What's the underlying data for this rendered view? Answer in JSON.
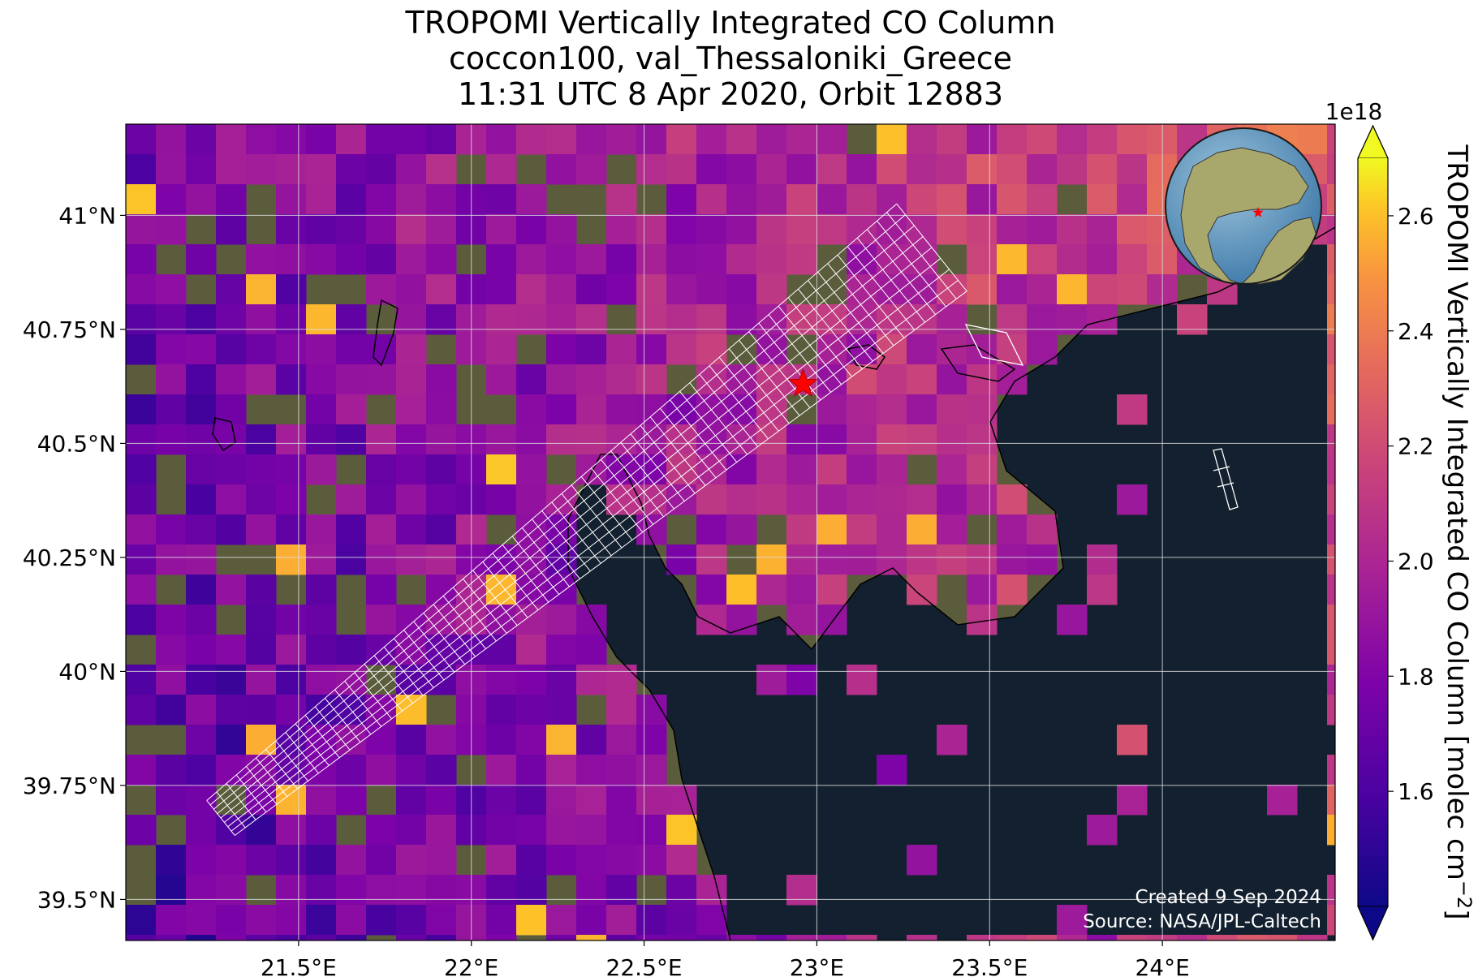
{
  "title": {
    "line1": "TROPOMI Vertically Integrated CO Column",
    "line2": "coccon100, val_Thessaloniki_Greece",
    "line3": "11:31 UTC 8 Apr 2020, Orbit 12883"
  },
  "axes": {
    "lon_ticks": [
      "21.5°E",
      "22°E",
      "22.5°E",
      "23°E",
      "23.5°E",
      "24°E"
    ],
    "lon_values": [
      21.5,
      22.0,
      22.5,
      23.0,
      23.5,
      24.0
    ],
    "lat_ticks": [
      "41°N",
      "40.75°N",
      "40.5°N",
      "40.25°N",
      "40°N",
      "39.75°N",
      "39.5°N"
    ],
    "lat_values": [
      41.0,
      40.75,
      40.5,
      40.25,
      40.0,
      39.75,
      39.5
    ],
    "lon_range": [
      21.0,
      24.5
    ],
    "lat_range": [
      39.41,
      41.2
    ],
    "gridlines": true
  },
  "colorbar": {
    "label": "TROPOMI Vertically Integrated CO Column [molec cm",
    "label_superscript": "−2",
    "label_close": "]",
    "scale_label": "1e18",
    "tick_labels": [
      "1.6",
      "1.8",
      "2.0",
      "2.2",
      "2.4",
      "2.6"
    ],
    "tick_values": [
      1.6,
      1.8,
      2.0,
      2.2,
      2.4,
      2.6
    ],
    "range": [
      1.4,
      2.7
    ],
    "colormap": "plasma",
    "extend": "both"
  },
  "site": {
    "name": "val_Thessaloniki_Greece",
    "lon": 22.96,
    "lat": 40.63,
    "marker": "star-icon",
    "color": "#ff0000"
  },
  "footer": {
    "created": "Created 9 Sep 2024",
    "source": "Source: NASA/JPL-Caltech"
  },
  "colors": {
    "sea": "#13202f",
    "land": "#5a5a3a",
    "coast": "#000000",
    "grid": "#dddddd",
    "footprint": "#ffffff"
  }
}
